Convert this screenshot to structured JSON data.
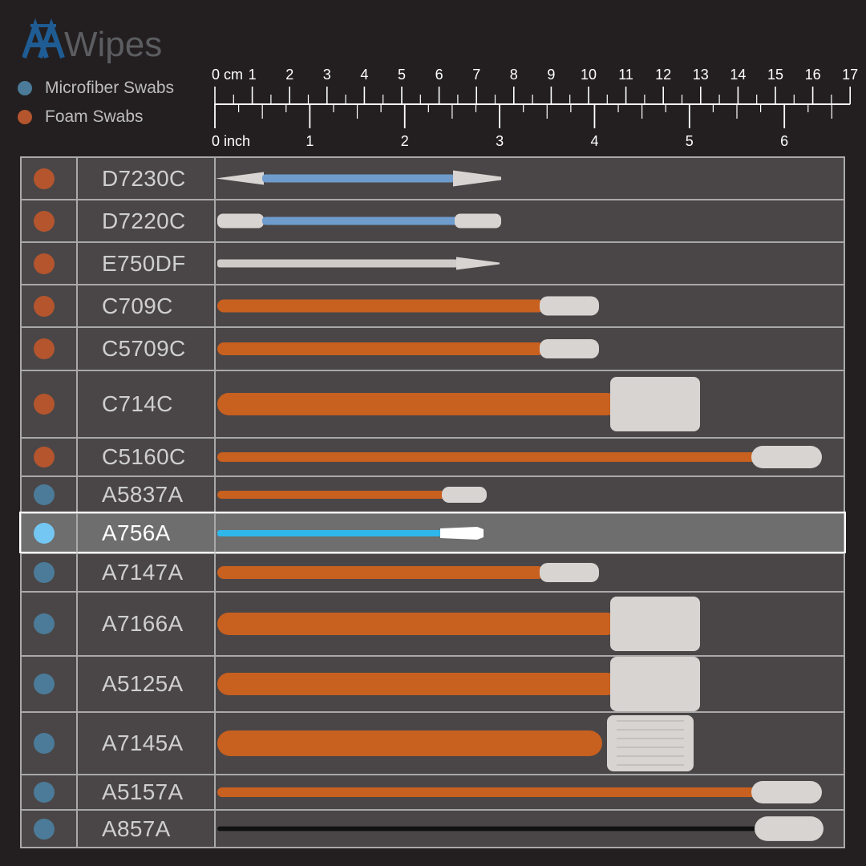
{
  "brand": {
    "name": "Wipes",
    "colors": {
      "mark": "#1f5c94",
      "text": "#5b5d60"
    }
  },
  "legend": [
    {
      "label": "Microfiber Swabs",
      "color": "#4b7b99"
    },
    {
      "label": "Foam Swabs",
      "color": "#b4552d"
    }
  ],
  "ruler": {
    "cm_labels": [
      "0 cm",
      "1",
      "2",
      "3",
      "4",
      "5",
      "6",
      "7",
      "8",
      "9",
      "10",
      "11",
      "12",
      "13",
      "14",
      "15",
      "16",
      "17"
    ],
    "inch_labels": [
      "0 inch",
      "1",
      "2",
      "3",
      "4",
      "5",
      "6"
    ]
  },
  "table": {
    "rows": [
      {
        "code": "D7230C",
        "type": "foam",
        "swab": "double-pointed-blue"
      },
      {
        "code": "D7220C",
        "type": "foam",
        "swab": "double-rounded-blue"
      },
      {
        "code": "E750DF",
        "type": "foam",
        "swab": "pointed-white"
      },
      {
        "code": "C709C",
        "type": "foam",
        "swab": "paddle-small"
      },
      {
        "code": "C5709C",
        "type": "foam",
        "swab": "paddle-small"
      },
      {
        "code": "C714C",
        "type": "foam",
        "swab": "paddle-large"
      },
      {
        "code": "C5160C",
        "type": "foam",
        "swab": "oval-long"
      },
      {
        "code": "A5837A",
        "type": "microfiber",
        "swab": "oval-short"
      },
      {
        "code": "A756A",
        "type": "microfiber",
        "swab": "cone-blue",
        "highlighted": true
      },
      {
        "code": "A7147A",
        "type": "microfiber",
        "swab": "paddle-small"
      },
      {
        "code": "A7166A",
        "type": "microfiber",
        "swab": "paddle-large"
      },
      {
        "code": "A5125A",
        "type": "microfiber",
        "swab": "paddle-large"
      },
      {
        "code": "A7145A",
        "type": "microfiber",
        "swab": "paddle-large-textured"
      },
      {
        "code": "A5157A",
        "type": "microfiber",
        "swab": "oval-long"
      },
      {
        "code": "A857A",
        "type": "microfiber",
        "swab": "oval-black-handle"
      }
    ],
    "colors": {
      "foam_dot": "#b4552d",
      "microfiber_dot": "#4b7b99",
      "highlight_dot": "#73c7f2",
      "row_bg": "#4a4647",
      "highlight_bg": "#6e6e6e",
      "handle_orange": "#c8601f",
      "handle_blue": "#6f9ccc",
      "handle_cyan": "#2fb6ea",
      "head_white": "#d8d4d2"
    }
  }
}
